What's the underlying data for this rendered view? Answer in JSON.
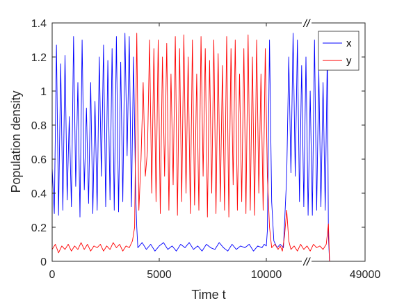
{
  "chart_data": {
    "type": "line",
    "xlabel": "Time t",
    "ylabel": "Population density",
    "xlim": [
      0,
      49000
    ],
    "ylim": [
      0,
      1.4
    ],
    "x_axis_break": {
      "shown_before_break": [
        0,
        12000
      ],
      "shown_after_break_label": "49000",
      "marker": "//"
    },
    "x_ticks": [
      "0",
      "5000",
      "10000",
      "49000"
    ],
    "y_ticks": [
      "0",
      "0.2",
      "0.4",
      "0.6",
      "0.8",
      "1",
      "1.2",
      "1.4"
    ],
    "legend": {
      "placement": "top-right",
      "entries": [
        "x",
        "y"
      ]
    },
    "grid": false,
    "series": [
      {
        "name": "x",
        "color": "#0000ff",
        "points": [
          [
            0,
            0.55
          ],
          [
            100,
            0.28
          ],
          [
            200,
            1.27
          ],
          [
            300,
            0.27
          ],
          [
            400,
            1.16
          ],
          [
            500,
            0.3
          ],
          [
            600,
            1.21
          ],
          [
            700,
            0.36
          ],
          [
            800,
            0.85
          ],
          [
            900,
            0.32
          ],
          [
            1000,
            1.32
          ],
          [
            1100,
            0.44
          ],
          [
            1200,
            1.05
          ],
          [
            1300,
            0.26
          ],
          [
            1400,
            1.3
          ],
          [
            1500,
            0.42
          ],
          [
            1600,
            0.9
          ],
          [
            1700,
            0.34
          ],
          [
            1800,
            1.05
          ],
          [
            1900,
            0.28
          ],
          [
            2000,
            0.94
          ],
          [
            2100,
            0.3
          ],
          [
            2200,
            1.2
          ],
          [
            2300,
            0.5
          ],
          [
            2400,
            1.27
          ],
          [
            2500,
            0.32
          ],
          [
            2600,
            1.18
          ],
          [
            2700,
            0.36
          ],
          [
            2800,
            1.25
          ],
          [
            2900,
            0.3
          ],
          [
            3000,
            1.32
          ],
          [
            3100,
            0.29
          ],
          [
            3200,
            1.17
          ],
          [
            3300,
            0.35
          ],
          [
            3400,
            1.34
          ],
          [
            3500,
            0.62
          ],
          [
            3600,
            1.32
          ],
          [
            3700,
            0.32
          ],
          [
            3800,
            1.2
          ],
          [
            3900,
            0.4
          ],
          [
            3950,
            0.2
          ],
          [
            4000,
            0.08
          ],
          [
            4200,
            0.11
          ],
          [
            4400,
            0.07
          ],
          [
            4600,
            0.1
          ],
          [
            4800,
            0.06
          ],
          [
            5000,
            0.09
          ],
          [
            5200,
            0.11
          ],
          [
            5400,
            0.07
          ],
          [
            5600,
            0.09
          ],
          [
            5800,
            0.06
          ],
          [
            6000,
            0.1
          ],
          [
            6200,
            0.08
          ],
          [
            6400,
            0.11
          ],
          [
            6600,
            0.07
          ],
          [
            6800,
            0.09
          ],
          [
            7000,
            0.06
          ],
          [
            7200,
            0.1
          ],
          [
            7400,
            0.08
          ],
          [
            7600,
            0.07
          ],
          [
            7800,
            0.11
          ],
          [
            8000,
            0.08
          ],
          [
            8200,
            0.06
          ],
          [
            8400,
            0.1
          ],
          [
            8600,
            0.07
          ],
          [
            8800,
            0.09
          ],
          [
            9000,
            0.08
          ],
          [
            9200,
            0.1
          ],
          [
            9400,
            0.06
          ],
          [
            9600,
            0.09
          ],
          [
            9800,
            0.08
          ],
          [
            9900,
            0.1
          ],
          [
            10000,
            0.09
          ],
          [
            10050,
            0.18
          ],
          [
            10150,
            1.3
          ],
          [
            10250,
            0.35
          ],
          [
            10350,
            0.12
          ],
          [
            10500,
            0.08
          ],
          [
            10650,
            0.1
          ],
          [
            10800,
            0.08
          ],
          [
            10950,
            0.5
          ],
          [
            11050,
            1.2
          ],
          [
            11150,
            0.52
          ],
          [
            11250,
            1.34
          ],
          [
            11350,
            0.5
          ],
          [
            11450,
            1.3
          ],
          [
            11550,
            0.35
          ],
          [
            11650,
            1.15
          ],
          [
            11750,
            0.32
          ],
          [
            11850,
            1.2
          ],
          [
            11950,
            0.27
          ],
          [
            12050,
            1.0
          ],
          [
            12150,
            0.27
          ],
          [
            12250,
            1.3
          ],
          [
            12350,
            0.3
          ],
          [
            12450,
            1.12
          ],
          [
            12550,
            0.32
          ],
          [
            12650,
            1.05
          ],
          [
            12750,
            0.3
          ],
          [
            12850,
            1.25
          ],
          [
            12900,
            0.15
          ],
          [
            12950,
            0.0
          ],
          [
            49000,
            0.0
          ]
        ]
      },
      {
        "name": "y",
        "color": "#ff0000",
        "points": [
          [
            0,
            0.07
          ],
          [
            150,
            0.1
          ],
          [
            300,
            0.05
          ],
          [
            450,
            0.09
          ],
          [
            600,
            0.07
          ],
          [
            750,
            0.1
          ],
          [
            900,
            0.06
          ],
          [
            1050,
            0.09
          ],
          [
            1200,
            0.07
          ],
          [
            1350,
            0.11
          ],
          [
            1500,
            0.07
          ],
          [
            1650,
            0.1
          ],
          [
            1800,
            0.06
          ],
          [
            1950,
            0.09
          ],
          [
            2100,
            0.08
          ],
          [
            2250,
            0.1
          ],
          [
            2400,
            0.06
          ],
          [
            2550,
            0.09
          ],
          [
            2700,
            0.07
          ],
          [
            2850,
            0.11
          ],
          [
            3000,
            0.08
          ],
          [
            3150,
            0.1
          ],
          [
            3300,
            0.06
          ],
          [
            3450,
            0.09
          ],
          [
            3600,
            0.08
          ],
          [
            3750,
            0.12
          ],
          [
            3850,
            0.2
          ],
          [
            3950,
            1.34
          ],
          [
            4050,
            0.3
          ],
          [
            4150,
            0.6
          ],
          [
            4250,
            1.05
          ],
          [
            4350,
            0.5
          ],
          [
            4450,
            0.65
          ],
          [
            4550,
            1.3
          ],
          [
            4650,
            0.4
          ],
          [
            4750,
            1.25
          ],
          [
            4850,
            0.35
          ],
          [
            4950,
            1.3
          ],
          [
            5050,
            0.28
          ],
          [
            5150,
            1.2
          ],
          [
            5250,
            0.5
          ],
          [
            5350,
            1.28
          ],
          [
            5450,
            0.3
          ],
          [
            5550,
            1.1
          ],
          [
            5650,
            0.45
          ],
          [
            5750,
            1.32
          ],
          [
            5850,
            0.27
          ],
          [
            5950,
            1.25
          ],
          [
            6050,
            0.35
          ],
          [
            6150,
            1.33
          ],
          [
            6250,
            0.4
          ],
          [
            6350,
            1.2
          ],
          [
            6450,
            0.28
          ],
          [
            6550,
            1.3
          ],
          [
            6650,
            0.33
          ],
          [
            6750,
            1.1
          ],
          [
            6850,
            0.3
          ],
          [
            6950,
            1.32
          ],
          [
            7050,
            0.5
          ],
          [
            7150,
            1.25
          ],
          [
            7250,
            0.26
          ],
          [
            7350,
            1.18
          ],
          [
            7450,
            0.4
          ],
          [
            7550,
            1.3
          ],
          [
            7650,
            0.28
          ],
          [
            7750,
            1.22
          ],
          [
            7850,
            0.35
          ],
          [
            7950,
            1.15
          ],
          [
            8050,
            0.3
          ],
          [
            8150,
            1.32
          ],
          [
            8250,
            0.26
          ],
          [
            8350,
            1.25
          ],
          [
            8450,
            0.45
          ],
          [
            8550,
            1.3
          ],
          [
            8650,
            0.3
          ],
          [
            8750,
            1.1
          ],
          [
            8850,
            0.35
          ],
          [
            8950,
            1.25
          ],
          [
            9050,
            0.28
          ],
          [
            9150,
            1.33
          ],
          [
            9250,
            0.3
          ],
          [
            9350,
            1.2
          ],
          [
            9450,
            0.27
          ],
          [
            9550,
            1.3
          ],
          [
            9650,
            0.4
          ],
          [
            9750,
            1.1
          ],
          [
            9850,
            0.3
          ],
          [
            9950,
            1.25
          ],
          [
            10050,
            0.5
          ],
          [
            10150,
            0.2
          ],
          [
            10250,
            0.08
          ],
          [
            10400,
            0.1
          ],
          [
            10550,
            0.07
          ],
          [
            10650,
            0.09
          ],
          [
            10750,
            0.06
          ],
          [
            10850,
            0.15
          ],
          [
            10950,
            0.3
          ],
          [
            11050,
            0.12
          ],
          [
            11150,
            0.07
          ],
          [
            11300,
            0.09
          ],
          [
            11450,
            0.06
          ],
          [
            11600,
            0.1
          ],
          [
            11750,
            0.07
          ],
          [
            11900,
            0.09
          ],
          [
            12050,
            0.06
          ],
          [
            12200,
            0.1
          ],
          [
            12350,
            0.08
          ],
          [
            12500,
            0.09
          ],
          [
            12650,
            0.07
          ],
          [
            12800,
            0.1
          ],
          [
            12900,
            0.22
          ],
          [
            12950,
            0.0
          ],
          [
            49000,
            0.0
          ]
        ]
      }
    ]
  }
}
